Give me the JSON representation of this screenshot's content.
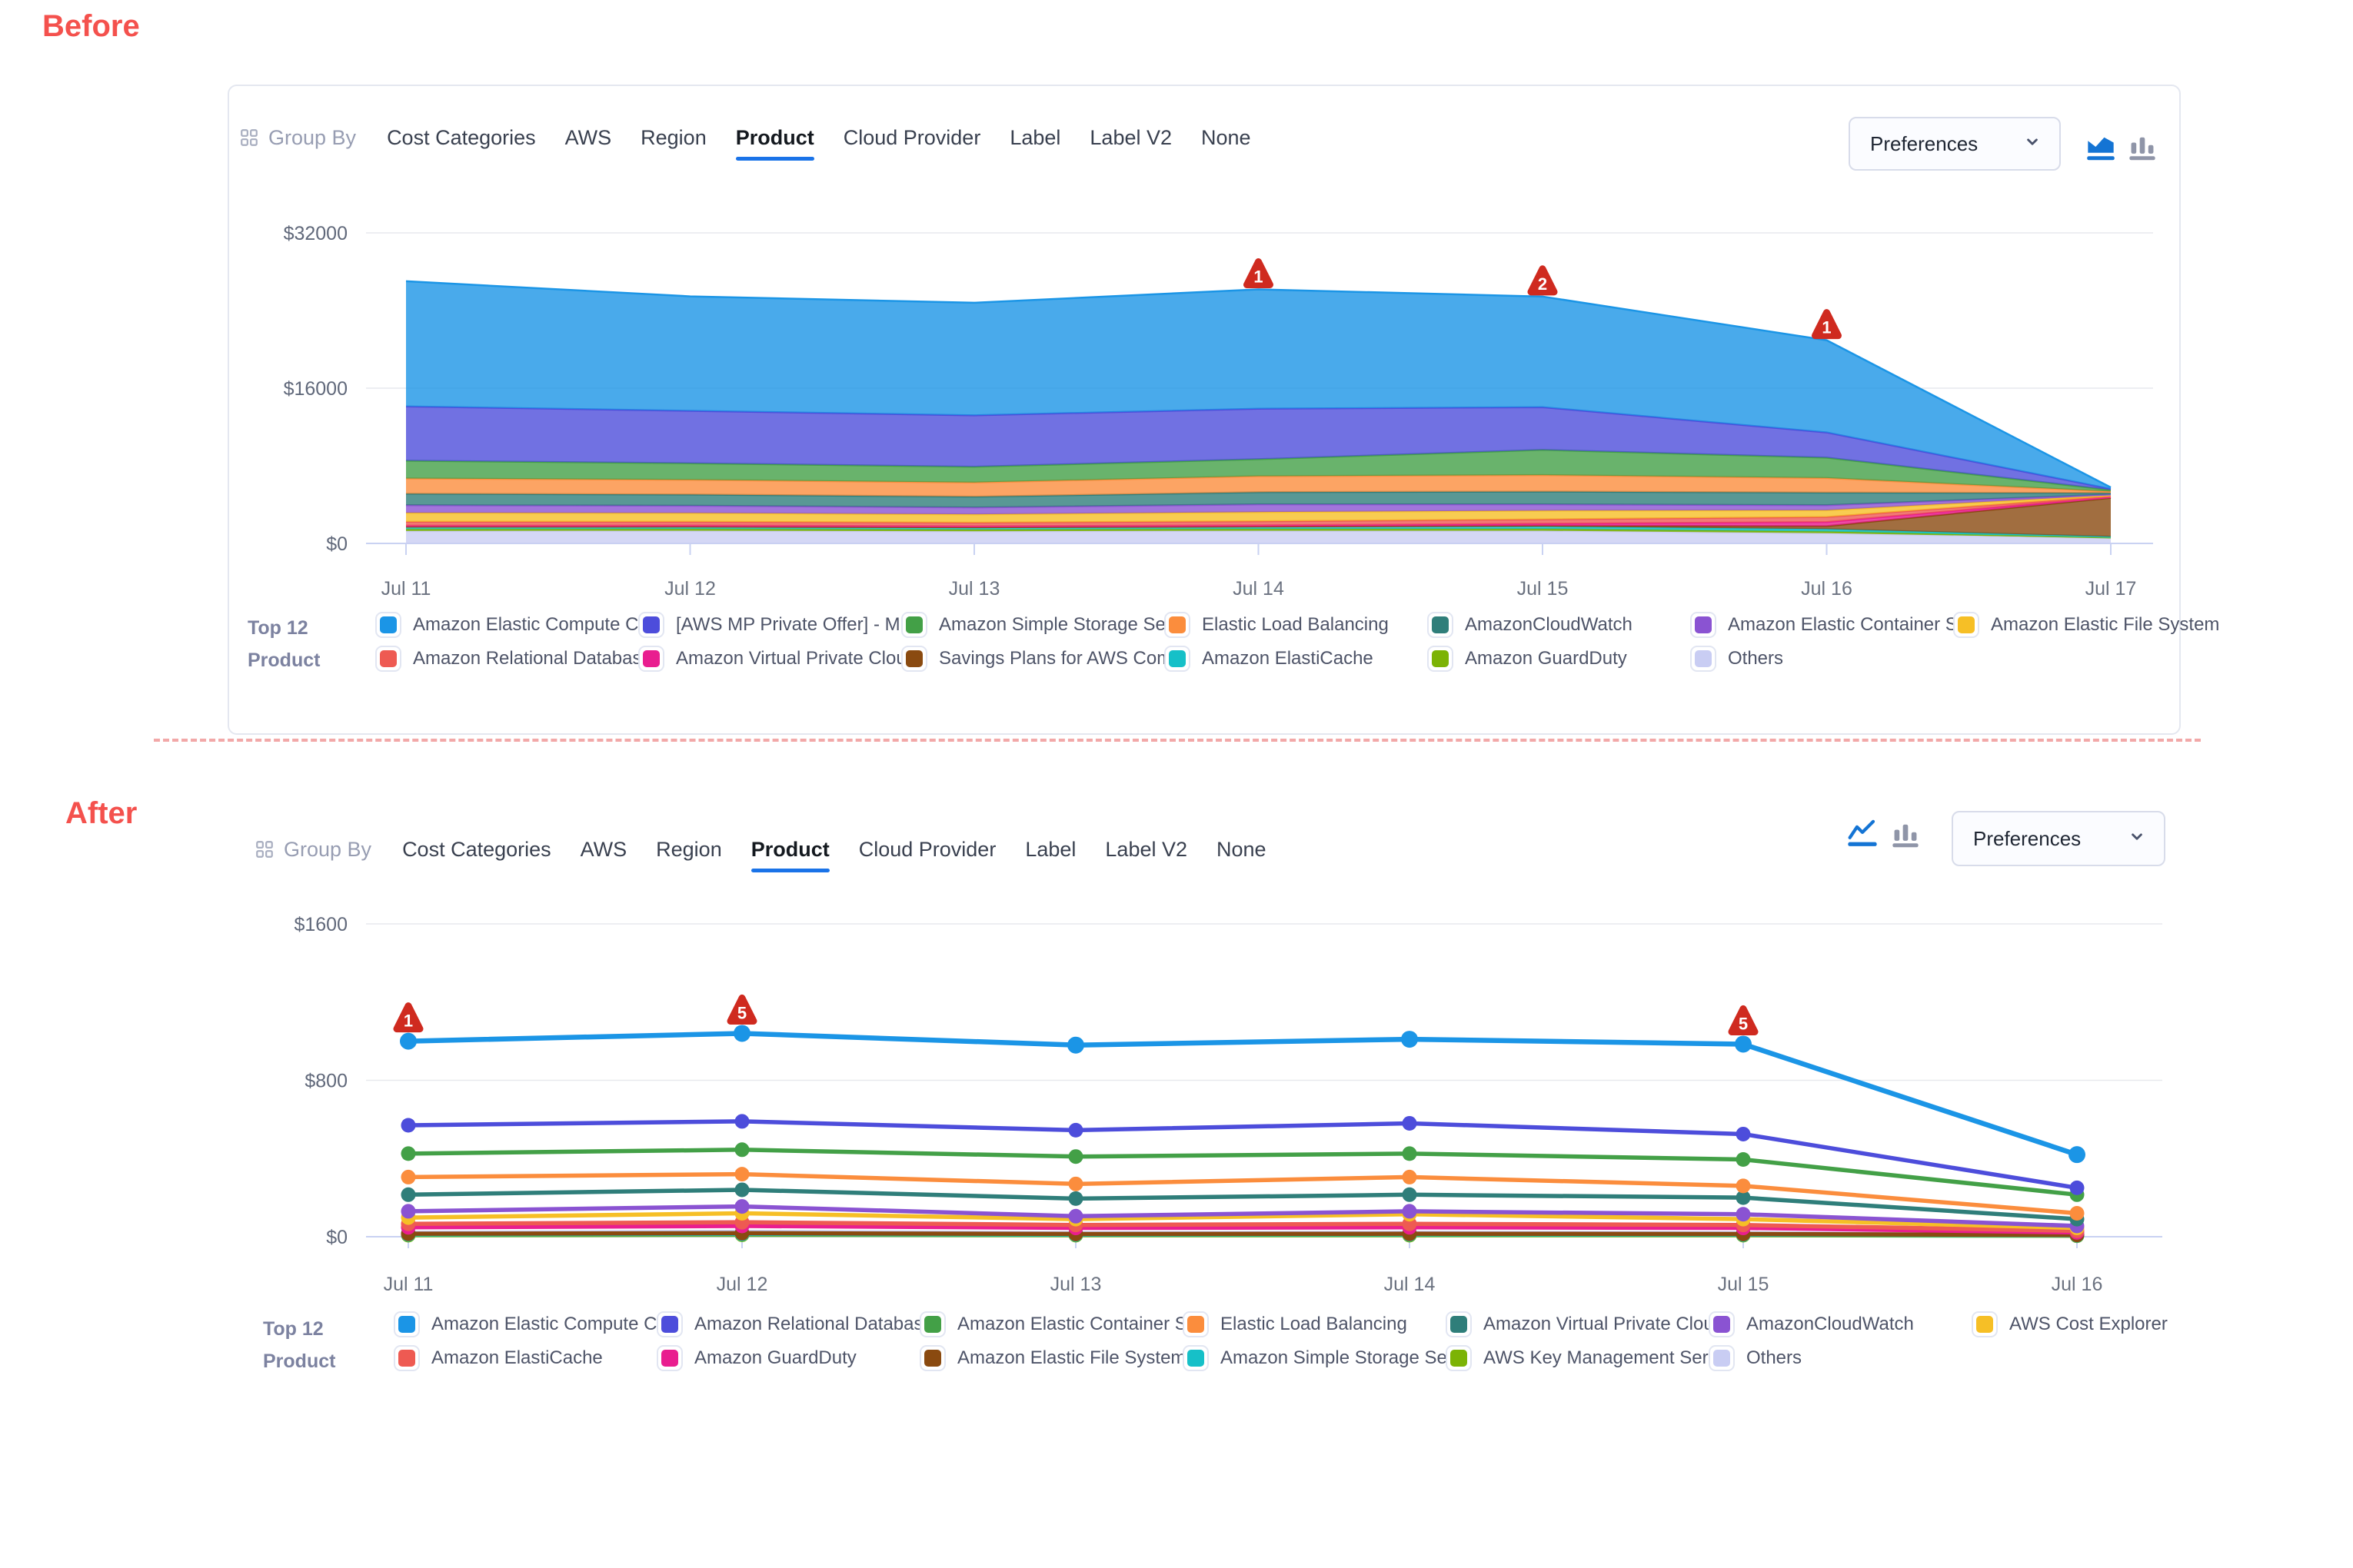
{
  "page": {
    "before_label": "Before",
    "after_label": "After"
  },
  "toolbar": {
    "group_by_label": "Group By",
    "tabs": [
      "Cost Categories",
      "AWS",
      "Region",
      "Product",
      "Cloud Provider",
      "Label",
      "Label V2",
      "None"
    ],
    "active_tab": "Product",
    "preferences_label": "Preferences"
  },
  "colors": {
    "accent_blue": "#1a73e8",
    "annotation_red": "#cf2a1f",
    "divider_pink": "#f2a8a8",
    "blue": "#1b95e6",
    "indigo": "#4d4ddb",
    "green": "#43a047",
    "orange": "#fb8d3d",
    "teal": "#2f7e7a",
    "purple": "#8a53d2",
    "gold": "#f6bf26",
    "red": "#ee5a52",
    "magenta": "#e91e8f",
    "brown": "#8a4a10",
    "cyan": "#16c0c8",
    "olive": "#7cb305",
    "lavender": "#c9cdf3"
  },
  "chart_data": [
    {
      "id": "before",
      "type": "area",
      "stacked": true,
      "title_rows": [
        "Top 12",
        "Product"
      ],
      "ylim": [
        0,
        32000
      ],
      "y_ticks": [
        {
          "label": "$0",
          "value": 0
        },
        {
          "label": "$16000",
          "value": 16000
        },
        {
          "label": "$32000",
          "value": 32000
        }
      ],
      "x_labels": [
        "Jul 11",
        "Jul 12",
        "Jul 13",
        "Jul 14",
        "Jul 15",
        "Jul 16",
        "Jul 17"
      ],
      "markers": [
        {
          "label": "1",
          "x": "Jul 14"
        },
        {
          "label": "2",
          "x": "Jul 15"
        },
        {
          "label": "1",
          "x": "Jul 16"
        }
      ],
      "series": [
        {
          "name": "Others",
          "color": "#c9cdf3",
          "values": [
            1280,
            1300,
            1250,
            1300,
            1300,
            1050,
            550
          ]
        },
        {
          "name": "Amazon GuardDuty",
          "color": "#7cb305",
          "values": [
            190,
            185,
            175,
            190,
            190,
            180,
            60
          ]
        },
        {
          "name": "Amazon ElastiCache",
          "color": "#16c0c8",
          "values": [
            260,
            255,
            245,
            260,
            260,
            250,
            80
          ]
        },
        {
          "name": "Savings Plans for AWS Com...",
          "color": "#8a4a10",
          "values": [
            0,
            0,
            0,
            0,
            80,
            300,
            4000
          ]
        },
        {
          "name": "Amazon Virtual Private Cloud",
          "color": "#e91e8f",
          "values": [
            100,
            100,
            100,
            110,
            200,
            420,
            80
          ]
        },
        {
          "name": "Amazon Relational Databas...",
          "color": "#ee5a52",
          "values": [
            400,
            390,
            370,
            420,
            450,
            520,
            100
          ]
        },
        {
          "name": "Amazon Elastic File System",
          "color": "#f6bf26",
          "values": [
            920,
            900,
            860,
            950,
            900,
            700,
            100
          ]
        },
        {
          "name": "Amazon Elastic Container S...",
          "color": "#8a53d2",
          "values": [
            790,
            760,
            710,
            800,
            650,
            520,
            80
          ]
        },
        {
          "name": "AmazonCloudWatch",
          "color": "#2f7e7a",
          "values": [
            1180,
            1150,
            1110,
            1250,
            1310,
            1300,
            150
          ]
        },
        {
          "name": "Elastic Load Balancing",
          "color": "#fb8d3d",
          "values": [
            1570,
            1510,
            1460,
            1650,
            1700,
            1500,
            150
          ]
        },
        {
          "name": "Amazon Simple Storage Ser...",
          "color": "#43a047",
          "values": [
            1830,
            1710,
            1620,
            1750,
            2600,
            2100,
            160
          ]
        },
        {
          "name": "[AWS MP Private Offer] - M...",
          "color": "#4d4ddb",
          "values": [
            5600,
            5400,
            5300,
            5200,
            4400,
            2600,
            110
          ]
        },
        {
          "name": "Amazon Elastic Compute Cl...",
          "color": "#1b95e6",
          "values": [
            12900,
            11800,
            11600,
            12300,
            11400,
            9500,
            150
          ]
        }
      ],
      "legend_rows": [
        [
          {
            "label": "Amazon Elastic Compute Cl...",
            "color": "#1b95e6"
          },
          {
            "label": "[AWS MP Private Offer] - M...",
            "color": "#4d4ddb"
          },
          {
            "label": "Amazon Simple Storage Ser...",
            "color": "#43a047"
          },
          {
            "label": "Elastic Load Balancing",
            "color": "#fb8d3d"
          },
          {
            "label": "AmazonCloudWatch",
            "color": "#2f7e7a"
          },
          {
            "label": "Amazon Elastic Container S...",
            "color": "#8a53d2"
          },
          {
            "label": "Amazon Elastic File System",
            "color": "#f6bf26"
          }
        ],
        [
          {
            "label": "Amazon Relational Databas...",
            "color": "#ee5a52"
          },
          {
            "label": "Amazon Virtual Private Cloud",
            "color": "#e91e8f"
          },
          {
            "label": "Savings Plans for AWS Com...",
            "color": "#8a4a10"
          },
          {
            "label": "Amazon ElastiCache",
            "color": "#16c0c8"
          },
          {
            "label": "Amazon GuardDuty",
            "color": "#7cb305"
          },
          {
            "label": "Others",
            "color": "#c9cdf3"
          }
        ]
      ]
    },
    {
      "id": "after",
      "type": "line",
      "stacked": false,
      "title_rows": [
        "Top 12",
        "Product"
      ],
      "ylim": [
        0,
        1600
      ],
      "y_ticks": [
        {
          "label": "$0",
          "value": 0
        },
        {
          "label": "$800",
          "value": 800
        },
        {
          "label": "$1600",
          "value": 1600
        }
      ],
      "x_labels": [
        "Jul 11",
        "Jul 12",
        "Jul 13",
        "Jul 14",
        "Jul 15",
        "Jul 16"
      ],
      "markers": [
        {
          "label": "1",
          "x": "Jul 11"
        },
        {
          "label": "5",
          "x": "Jul 12"
        },
        {
          "label": "5",
          "x": "Jul 15"
        }
      ],
      "series": [
        {
          "name": "Others",
          "color": "#c9cdf3",
          "values": [
            20,
            25,
            18,
            20,
            18,
            10
          ]
        },
        {
          "name": "AWS Key Management Serv...",
          "color": "#7cb305",
          "values": [
            8,
            10,
            8,
            8,
            8,
            5
          ]
        },
        {
          "name": "Amazon Simple Storage Ser...",
          "color": "#16c0c8",
          "values": [
            12,
            14,
            11,
            12,
            11,
            7
          ]
        },
        {
          "name": "Amazon Elastic File System",
          "color": "#8a4a10",
          "values": [
            15,
            18,
            14,
            15,
            14,
            9
          ]
        },
        {
          "name": "Amazon GuardDuty",
          "color": "#e91e8f",
          "values": [
            48,
            55,
            45,
            48,
            45,
            22
          ]
        },
        {
          "name": "Amazon ElastiCache",
          "color": "#ee5a52",
          "values": [
            66,
            74,
            60,
            66,
            60,
            30
          ]
        },
        {
          "name": "AWS Cost Explorer",
          "color": "#f6bf26",
          "values": [
            98,
            120,
            90,
            115,
            90,
            45
          ]
        },
        {
          "name": "AmazonCloudWatch",
          "color": "#8a53d2",
          "values": [
            130,
            155,
            105,
            130,
            115,
            55
          ]
        },
        {
          "name": "Amazon Virtual Private Cloud",
          "color": "#2f7e7a",
          "values": [
            215,
            240,
            195,
            215,
            200,
            90
          ]
        },
        {
          "name": "Elastic Load Balancing",
          "color": "#fb8d3d",
          "values": [
            305,
            320,
            270,
            305,
            260,
            120
          ]
        },
        {
          "name": "Amazon Elastic Container S...",
          "color": "#43a047",
          "values": [
            425,
            445,
            410,
            425,
            395,
            215
          ]
        },
        {
          "name": "Amazon Relational Databas...",
          "color": "#4d4ddb",
          "values": [
            570,
            590,
            545,
            580,
            525,
            250
          ]
        },
        {
          "name": "Amazon Elastic Compute Cl...",
          "color": "#1b95e6",
          "values": [
            1000,
            1040,
            980,
            1010,
            985,
            420
          ]
        }
      ],
      "legend_rows": [
        [
          {
            "label": "Amazon Elastic Compute Cl...",
            "color": "#1b95e6"
          },
          {
            "label": "Amazon Relational Databas...",
            "color": "#4d4ddb"
          },
          {
            "label": "Amazon Elastic Container S...",
            "color": "#43a047"
          },
          {
            "label": "Elastic Load Balancing",
            "color": "#fb8d3d"
          },
          {
            "label": "Amazon Virtual Private Cloud",
            "color": "#2f7e7a"
          },
          {
            "label": "AmazonCloudWatch",
            "color": "#8a53d2"
          },
          {
            "label": "AWS Cost Explorer",
            "color": "#f6bf26"
          }
        ],
        [
          {
            "label": "Amazon ElastiCache",
            "color": "#ee5a52"
          },
          {
            "label": "Amazon GuardDuty",
            "color": "#e91e8f"
          },
          {
            "label": "Amazon Elastic File System",
            "color": "#8a4a10"
          },
          {
            "label": "Amazon Simple Storage Ser...",
            "color": "#16c0c8"
          },
          {
            "label": "AWS Key Management Serv...",
            "color": "#7cb305"
          },
          {
            "label": "Others",
            "color": "#c9cdf3"
          }
        ]
      ]
    }
  ]
}
